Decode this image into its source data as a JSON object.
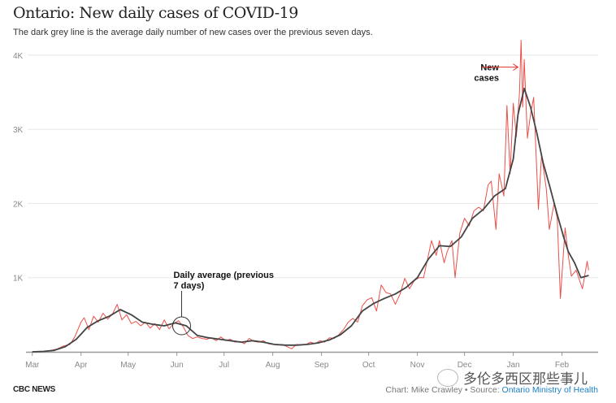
{
  "header": {
    "title": "Ontario: New daily cases of COVID-19",
    "subtitle": "The dark grey line is the average daily number of new cases over the previous seven days."
  },
  "footer": {
    "logo": "CBC NEWS",
    "credit_prefix": "Chart: Mike Crawley • Source: ",
    "source_link": "Ontario Ministry of Health"
  },
  "watermark": {
    "text": "多伦多西区那些事儿",
    "icon": "wechat-icon"
  },
  "chart_data": {
    "type": "line",
    "title": "Ontario: New daily cases of COVID-19",
    "xlabel": "",
    "ylabel": "",
    "xlim": [
      "2020-02-26",
      "2021-02-24"
    ],
    "ylim": [
      0,
      4200
    ],
    "grid": true,
    "x_ticks": [
      {
        "date": "2020-03-01",
        "label": "Mar"
      },
      {
        "date": "2020-04-01",
        "label": "Apr"
      },
      {
        "date": "2020-05-01",
        "label": "May"
      },
      {
        "date": "2020-06-01",
        "label": "Jun"
      },
      {
        "date": "2020-07-01",
        "label": "Jul"
      },
      {
        "date": "2020-08-01",
        "label": "Aug"
      },
      {
        "date": "2020-09-01",
        "label": "Sep"
      },
      {
        "date": "2020-10-01",
        "label": "Oct"
      },
      {
        "date": "2020-11-01",
        "label": "Nov"
      },
      {
        "date": "2020-12-01",
        "label": "Dec"
      },
      {
        "date": "2021-01-01",
        "label": "Jan"
      },
      {
        "date": "2021-02-01",
        "label": "Feb"
      }
    ],
    "y_ticks": [
      {
        "value": 1000,
        "label": "1K"
      },
      {
        "value": 2000,
        "label": "2K"
      },
      {
        "value": 3000,
        "label": "3K"
      },
      {
        "value": 4000,
        "label": "4K"
      }
    ],
    "annotations": [
      {
        "text_lines": [
          "New",
          "cases"
        ],
        "target": "new_cases",
        "date": "2021-01-04",
        "value": 3750
      },
      {
        "text_lines": [
          "Daily average (previous",
          "7 days)"
        ],
        "target": "average",
        "date": "2020-06-04",
        "value": 350
      }
    ],
    "series": [
      {
        "key": "new_cases",
        "color": "#e8302a",
        "points": [
          [
            "2020-03-01",
            0
          ],
          [
            "2020-03-05",
            2
          ],
          [
            "2020-03-09",
            5
          ],
          [
            "2020-03-13",
            20
          ],
          [
            "2020-03-17",
            40
          ],
          [
            "2020-03-21",
            80
          ],
          [
            "2020-03-25",
            100
          ],
          [
            "2020-03-28",
            200
          ],
          [
            "2020-04-01",
            400
          ],
          [
            "2020-04-03",
            460
          ],
          [
            "2020-04-06",
            300
          ],
          [
            "2020-04-09",
            480
          ],
          [
            "2020-04-12",
            400
          ],
          [
            "2020-04-15",
            520
          ],
          [
            "2020-04-18",
            440
          ],
          [
            "2020-04-21",
            510
          ],
          [
            "2020-04-24",
            640
          ],
          [
            "2020-04-27",
            430
          ],
          [
            "2020-04-30",
            500
          ],
          [
            "2020-05-03",
            380
          ],
          [
            "2020-05-06",
            410
          ],
          [
            "2020-05-09",
            350
          ],
          [
            "2020-05-12",
            400
          ],
          [
            "2020-05-15",
            320
          ],
          [
            "2020-05-18",
            380
          ],
          [
            "2020-05-21",
            300
          ],
          [
            "2020-05-24",
            430
          ],
          [
            "2020-05-27",
            310
          ],
          [
            "2020-05-30",
            380
          ],
          [
            "2020-06-02",
            420
          ],
          [
            "2020-06-05",
            340
          ],
          [
            "2020-06-08",
            220
          ],
          [
            "2020-06-11",
            180
          ],
          [
            "2020-06-14",
            200
          ],
          [
            "2020-06-17",
            180
          ],
          [
            "2020-06-20",
            170
          ],
          [
            "2020-06-23",
            190
          ],
          [
            "2020-06-26",
            150
          ],
          [
            "2020-06-29",
            200
          ],
          [
            "2020-07-02",
            150
          ],
          [
            "2020-07-05",
            170
          ],
          [
            "2020-07-08",
            130
          ],
          [
            "2020-07-11",
            140
          ],
          [
            "2020-07-14",
            110
          ],
          [
            "2020-07-17",
            180
          ],
          [
            "2020-07-20",
            140
          ],
          [
            "2020-07-23",
            130
          ],
          [
            "2020-07-26",
            150
          ],
          [
            "2020-07-29",
            110
          ],
          [
            "2020-08-01",
            100
          ],
          [
            "2020-08-04",
            90
          ],
          [
            "2020-08-07",
            100
          ],
          [
            "2020-08-10",
            70
          ],
          [
            "2020-08-13",
            40
          ],
          [
            "2020-08-16",
            100
          ],
          [
            "2020-08-19",
            90
          ],
          [
            "2020-08-22",
            100
          ],
          [
            "2020-08-25",
            130
          ],
          [
            "2020-08-28",
            110
          ],
          [
            "2020-08-31",
            150
          ],
          [
            "2020-09-03",
            130
          ],
          [
            "2020-09-06",
            190
          ],
          [
            "2020-09-09",
            180
          ],
          [
            "2020-09-12",
            230
          ],
          [
            "2020-09-15",
            300
          ],
          [
            "2020-09-18",
            400
          ],
          [
            "2020-09-21",
            450
          ],
          [
            "2020-09-24",
            400
          ],
          [
            "2020-09-27",
            620
          ],
          [
            "2020-09-30",
            700
          ],
          [
            "2020-10-03",
            730
          ],
          [
            "2020-10-06",
            550
          ],
          [
            "2020-10-09",
            900
          ],
          [
            "2020-10-12",
            800
          ],
          [
            "2020-10-15",
            780
          ],
          [
            "2020-10-18",
            640
          ],
          [
            "2020-10-21",
            780
          ],
          [
            "2020-10-24",
            990
          ],
          [
            "2020-10-27",
            850
          ],
          [
            "2020-10-30",
            960
          ],
          [
            "2020-11-02",
            1000
          ],
          [
            "2020-11-05",
            1000
          ],
          [
            "2020-11-08",
            1300
          ],
          [
            "2020-11-10",
            1500
          ],
          [
            "2020-11-13",
            1300
          ],
          [
            "2020-11-15",
            1500
          ],
          [
            "2020-11-18",
            1200
          ],
          [
            "2020-11-20",
            1350
          ],
          [
            "2020-11-23",
            1500
          ],
          [
            "2020-11-25",
            1000
          ],
          [
            "2020-11-28",
            1600
          ],
          [
            "2020-12-01",
            1800
          ],
          [
            "2020-12-04",
            1700
          ],
          [
            "2020-12-07",
            1900
          ],
          [
            "2020-12-10",
            1950
          ],
          [
            "2020-12-13",
            1900
          ],
          [
            "2020-12-16",
            2250
          ],
          [
            "2020-12-18",
            2300
          ],
          [
            "2020-12-21",
            1650
          ],
          [
            "2020-12-23",
            2400
          ],
          [
            "2020-12-26",
            2100
          ],
          [
            "2020-12-28",
            3320
          ],
          [
            "2020-12-30",
            2400
          ],
          [
            "2021-01-01",
            3350
          ],
          [
            "2021-01-03",
            2900
          ],
          [
            "2021-01-05",
            3500
          ],
          [
            "2021-01-06",
            4200
          ],
          [
            "2021-01-07",
            3300
          ],
          [
            "2021-01-08",
            3940
          ],
          [
            "2021-01-10",
            2880
          ],
          [
            "2021-01-12",
            3200
          ],
          [
            "2021-01-14",
            3430
          ],
          [
            "2021-01-17",
            1920
          ],
          [
            "2021-01-19",
            2650
          ],
          [
            "2021-01-22",
            2200
          ],
          [
            "2021-01-24",
            1650
          ],
          [
            "2021-01-27",
            2000
          ],
          [
            "2021-01-29",
            1800
          ],
          [
            "2021-01-31",
            720
          ],
          [
            "2021-02-03",
            1670
          ],
          [
            "2021-02-05",
            1300
          ],
          [
            "2021-02-07",
            1020
          ],
          [
            "2021-02-10",
            1100
          ],
          [
            "2021-02-14",
            850
          ],
          [
            "2021-02-17",
            1220
          ],
          [
            "2021-02-18",
            1100
          ]
        ]
      },
      {
        "key": "average",
        "color": "#444444",
        "points": [
          [
            "2020-03-01",
            0
          ],
          [
            "2020-03-08",
            5
          ],
          [
            "2020-03-15",
            20
          ],
          [
            "2020-03-22",
            70
          ],
          [
            "2020-03-29",
            170
          ],
          [
            "2020-04-05",
            330
          ],
          [
            "2020-04-12",
            420
          ],
          [
            "2020-04-19",
            480
          ],
          [
            "2020-04-26",
            570
          ],
          [
            "2020-05-03",
            500
          ],
          [
            "2020-05-10",
            400
          ],
          [
            "2020-05-17",
            370
          ],
          [
            "2020-05-24",
            350
          ],
          [
            "2020-05-31",
            390
          ],
          [
            "2020-06-07",
            350
          ],
          [
            "2020-06-14",
            220
          ],
          [
            "2020-06-21",
            190
          ],
          [
            "2020-06-28",
            170
          ],
          [
            "2020-07-05",
            150
          ],
          [
            "2020-07-12",
            130
          ],
          [
            "2020-07-19",
            150
          ],
          [
            "2020-07-26",
            130
          ],
          [
            "2020-08-02",
            100
          ],
          [
            "2020-08-09",
            90
          ],
          [
            "2020-08-16",
            90
          ],
          [
            "2020-08-23",
            100
          ],
          [
            "2020-08-30",
            120
          ],
          [
            "2020-09-06",
            160
          ],
          [
            "2020-09-13",
            230
          ],
          [
            "2020-09-20",
            350
          ],
          [
            "2020-09-27",
            550
          ],
          [
            "2020-10-04",
            650
          ],
          [
            "2020-10-11",
            720
          ],
          [
            "2020-10-18",
            780
          ],
          [
            "2020-10-25",
            870
          ],
          [
            "2020-11-01",
            1000
          ],
          [
            "2020-11-08",
            1250
          ],
          [
            "2020-11-15",
            1430
          ],
          [
            "2020-11-22",
            1420
          ],
          [
            "2020-11-29",
            1550
          ],
          [
            "2020-12-06",
            1800
          ],
          [
            "2020-12-13",
            1920
          ],
          [
            "2020-12-20",
            2100
          ],
          [
            "2020-12-27",
            2200
          ],
          [
            "2021-01-01",
            2600
          ],
          [
            "2021-01-04",
            3200
          ],
          [
            "2021-01-08",
            3550
          ],
          [
            "2021-01-12",
            3300
          ],
          [
            "2021-01-16",
            2950
          ],
          [
            "2021-01-20",
            2550
          ],
          [
            "2021-01-24",
            2250
          ],
          [
            "2021-01-29",
            1850
          ],
          [
            "2021-02-02",
            1550
          ],
          [
            "2021-02-05",
            1350
          ],
          [
            "2021-02-09",
            1200
          ],
          [
            "2021-02-13",
            1000
          ],
          [
            "2021-02-18",
            1030
          ]
        ]
      }
    ]
  }
}
